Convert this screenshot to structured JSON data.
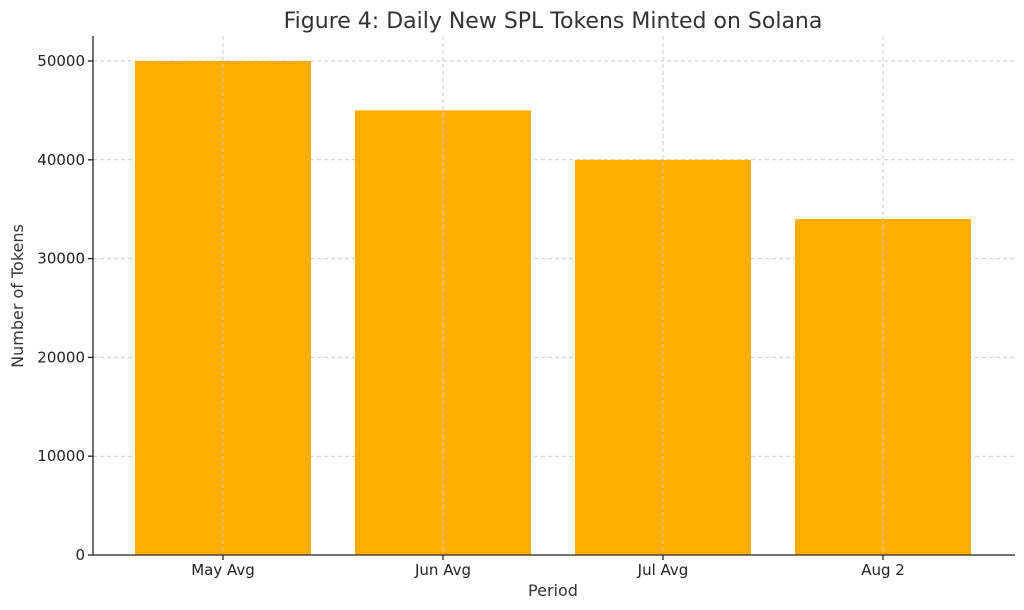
{
  "chart_data": {
    "type": "bar",
    "title": "Figure 4: Daily New SPL Tokens Minted on Solana",
    "xlabel": "Period",
    "ylabel": "Number of Tokens",
    "categories": [
      "May Avg",
      "Jun Avg",
      "Jul Avg",
      "Aug 2"
    ],
    "values": [
      50000,
      45000,
      40000,
      34000
    ],
    "ylim": [
      0,
      52500
    ],
    "yticks": [
      "0",
      "10000",
      "20000",
      "30000",
      "40000",
      "50000"
    ],
    "grid": true,
    "bar_color": "#FFAE00"
  }
}
